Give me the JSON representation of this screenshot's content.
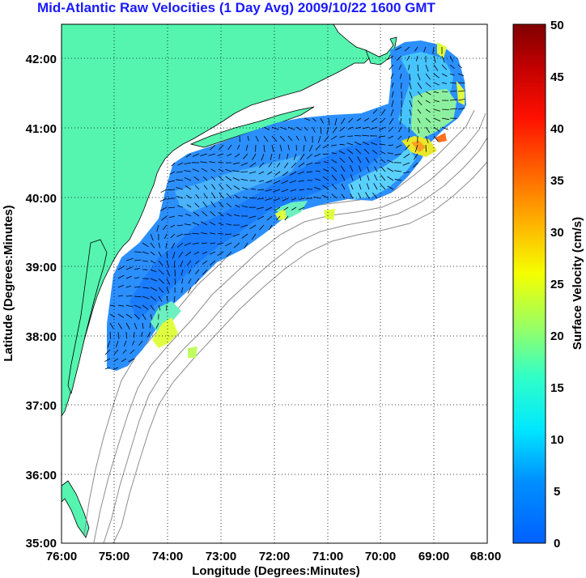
{
  "title": "Mid-Atlantic Raw Velocities (1 Day Avg) 2009/10/22 1600 GMT",
  "map": {
    "xlabel": "Longitude (Degrees:Minutes)",
    "ylabel": "Latitude (Degrees:Minutes)",
    "x_ticks": [
      "76:00",
      "75:00",
      "74:00",
      "73:00",
      "72:00",
      "71:00",
      "70:00",
      "69:00",
      "68:00"
    ],
    "y_ticks": [
      "42:00",
      "41:00",
      "40:00",
      "39:00",
      "38:00",
      "37:00",
      "36:00",
      "35:00"
    ],
    "lon_range": [
      -76,
      -68
    ],
    "lat_range": [
      35,
      42.5
    ],
    "land_color": "#55f5b0",
    "grid": "dotted"
  },
  "colorbar": {
    "label": "Surface Velocity (cm/s)",
    "ticks": [
      "50",
      "45",
      "40",
      "35",
      "30",
      "25",
      "20",
      "15",
      "10",
      "5",
      "0"
    ],
    "range": [
      0,
      50
    ],
    "colormap": "jet"
  }
}
